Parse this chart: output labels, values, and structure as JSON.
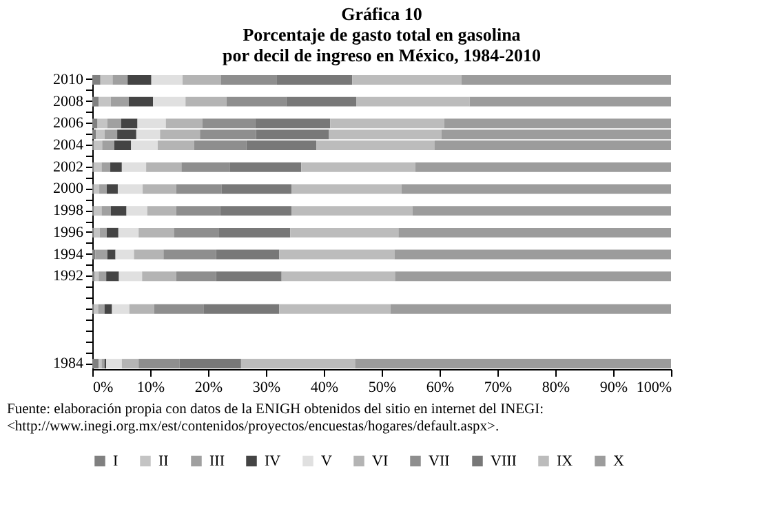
{
  "chart_data": {
    "type": "bar",
    "orientation": "horizontal",
    "stacked": true,
    "title": "Gráfica 10\nPorcentaje de gasto total en gasolina\npor decil de ingreso en México, 1984-2010",
    "categories": [
      "2010",
      null,
      "2008",
      null,
      "2006",
      null,
      "2004",
      null,
      "2002",
      null,
      "2000",
      null,
      "1998",
      null,
      "1996",
      null,
      "1994",
      null,
      "1992",
      null,
      null,
      null,
      null,
      null,
      null,
      null,
      "1984"
    ],
    "series": [
      {
        "name": "I",
        "color": "#808080",
        "values": [
          1.4,
          null,
          1.1,
          null,
          0.9,
          0.6,
          0.3,
          null,
          0.3,
          null,
          0.3,
          null,
          0.3,
          null,
          0.3,
          null,
          0.5,
          null,
          0.4,
          null,
          null,
          0.3,
          null,
          null,
          null,
          null,
          1.1
        ]
      },
      {
        "name": "II",
        "color": "#c4c4c4",
        "values": [
          2.1,
          null,
          2.1,
          null,
          1.7,
          1.5,
          1.4,
          null,
          1.3,
          null,
          0.9,
          null,
          1.3,
          null,
          1.0,
          null,
          null,
          null,
          0.7,
          null,
          null,
          0.7,
          null,
          null,
          null,
          null,
          0.5
        ]
      },
      {
        "name": "III",
        "color": "#a0a0a0",
        "values": [
          2.6,
          null,
          3.1,
          null,
          2.4,
          2.2,
          2.1,
          null,
          1.5,
          null,
          1.3,
          null,
          1.6,
          null,
          1.2,
          null,
          2.1,
          null,
          1.3,
          null,
          null,
          1.1,
          null,
          null,
          null,
          null,
          0.5
        ]
      },
      {
        "name": "IV",
        "color": "#444444",
        "values": [
          4.1,
          null,
          4.2,
          null,
          2.8,
          3.3,
          2.9,
          null,
          2.0,
          null,
          1.9,
          null,
          2.7,
          null,
          2.0,
          null,
          1.4,
          null,
          2.2,
          null,
          null,
          1.3,
          null,
          null,
          null,
          null,
          0.3
        ]
      },
      {
        "name": "V",
        "color": "#e0e0e0",
        "values": [
          5.4,
          null,
          5.6,
          null,
          4.9,
          4.1,
          4.6,
          null,
          4.2,
          null,
          4.3,
          null,
          3.6,
          null,
          3.5,
          null,
          3.2,
          null,
          4.0,
          null,
          null,
          3.0,
          null,
          null,
          null,
          null,
          2.7
        ]
      },
      {
        "name": "VI",
        "color": "#b4b4b4",
        "values": [
          6.6,
          null,
          7.1,
          null,
          6.3,
          6.9,
          6.3,
          null,
          6.1,
          null,
          5.8,
          null,
          5.0,
          null,
          6.1,
          null,
          5.1,
          null,
          5.9,
          null,
          null,
          4.3,
          null,
          null,
          null,
          null,
          2.9
        ]
      },
      {
        "name": "VII",
        "color": "#8e8e8e",
        "values": [
          9.7,
          null,
          10.3,
          null,
          9.2,
          9.7,
          9.0,
          null,
          8.4,
          null,
          7.8,
          null,
          7.6,
          null,
          7.8,
          null,
          9.1,
          null,
          6.9,
          null,
          null,
          8.5,
          null,
          null,
          null,
          null,
          7.1
        ]
      },
      {
        "name": "VIII",
        "color": "#787878",
        "values": [
          13.0,
          null,
          12.1,
          null,
          12.9,
          12.6,
          12.1,
          null,
          12.3,
          null,
          12.1,
          null,
          12.3,
          null,
          12.3,
          null,
          10.9,
          null,
          11.3,
          null,
          null,
          13.1,
          null,
          null,
          null,
          null,
          10.6
        ]
      },
      {
        "name": "IX",
        "color": "#bcbcbc",
        "values": [
          18.9,
          null,
          19.6,
          null,
          19.7,
          19.4,
          20.4,
          null,
          19.7,
          null,
          19.0,
          null,
          20.9,
          null,
          18.7,
          null,
          19.9,
          null,
          19.6,
          null,
          null,
          19.2,
          null,
          null,
          null,
          null,
          19.7
        ]
      },
      {
        "name": "X",
        "color": "#9c9c9c",
        "values": [
          36.2,
          null,
          34.8,
          null,
          39.2,
          39.7,
          40.9,
          null,
          44.2,
          null,
          46.6,
          null,
          44.7,
          null,
          47.1,
          null,
          47.8,
          null,
          47.7,
          null,
          null,
          48.5,
          null,
          null,
          null,
          null,
          54.6
        ]
      }
    ],
    "xlim": [
      0,
      100
    ],
    "xticks": [
      {
        "value": 0,
        "label": "0%"
      },
      {
        "value": 10,
        "label": "10%"
      },
      {
        "value": 20,
        "label": "20%"
      },
      {
        "value": 30,
        "label": "30%"
      },
      {
        "value": 40,
        "label": "40%"
      },
      {
        "value": 50,
        "label": "50%"
      },
      {
        "value": 60,
        "label": "60%"
      },
      {
        "value": 70,
        "label": "70%"
      },
      {
        "value": 80,
        "label": "80%"
      },
      {
        "value": 90,
        "label": "90%"
      },
      {
        "value": 100,
        "label": "100%"
      }
    ],
    "grid": false,
    "legend": "bottom",
    "annotations": [
      "Fuente: elaboración propia con datos de la ENIGH obtenidos del sitio en internet del INEGI: <http://www.inegi.org.mx/est/contenidos/proyectos/encuestas/hogares/default.aspx>."
    ]
  }
}
